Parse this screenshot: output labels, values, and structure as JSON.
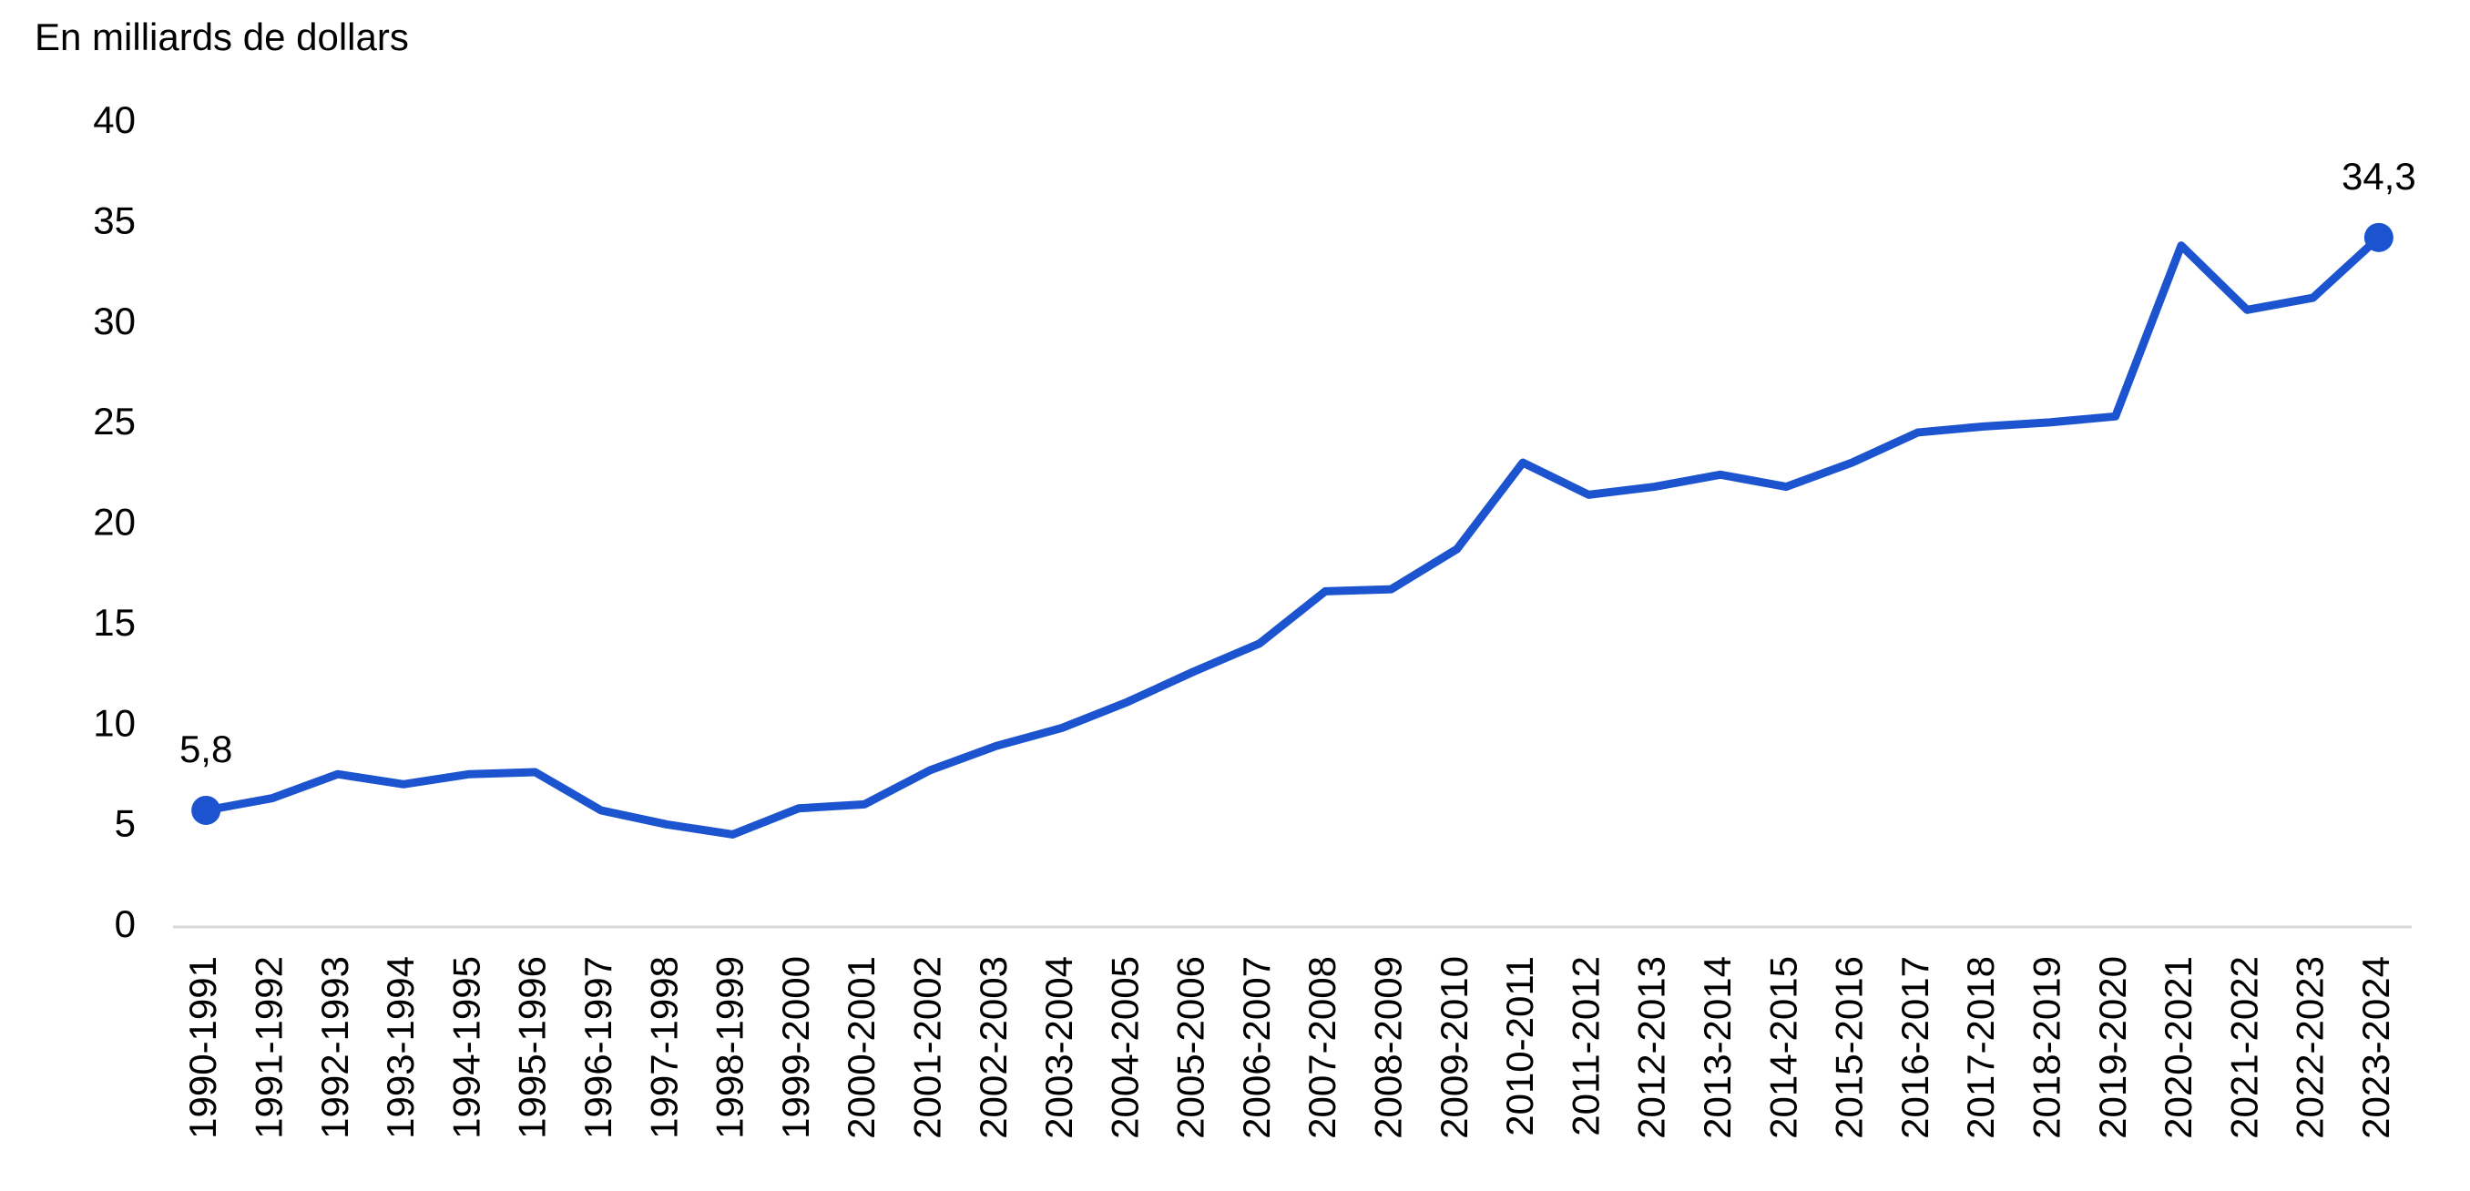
{
  "chart_data": {
    "type": "line",
    "y_label": "En milliards de dollars",
    "categories": [
      "1990-1991",
      "1991-1992",
      "1992-1993",
      "1993-1994",
      "1994-1995",
      "1995-1996",
      "1996-1997",
      "1997-1998",
      "1998-1999",
      "1999-2000",
      "2000-2001",
      "2001-2002",
      "2002-2003",
      "2003-2004",
      "2004-2005",
      "2005-2006",
      "2006-2007",
      "2007-2008",
      "2008-2009",
      "2009-2010",
      "2010-2011",
      "2011-2012",
      "2012-2013",
      "2013-2014",
      "2014-2015",
      "2015-2016",
      "2016-2017",
      "2017-2018",
      "2018-2019",
      "2019-2020",
      "2020-2021",
      "2021-2022",
      "2022-2023",
      "2023-2024"
    ],
    "values": [
      5.8,
      6.4,
      7.6,
      7.1,
      7.6,
      7.7,
      5.8,
      5.1,
      4.6,
      5.9,
      6.1,
      7.8,
      9.0,
      9.9,
      11.2,
      12.7,
      14.1,
      16.7,
      16.8,
      18.8,
      23.1,
      21.5,
      21.9,
      22.5,
      21.9,
      23.1,
      24.6,
      24.9,
      25.1,
      25.4,
      33.9,
      30.7,
      31.3,
      34.3
    ],
    "value_labels": [
      "5,8",
      null,
      null,
      null,
      null,
      null,
      null,
      null,
      null,
      null,
      null,
      null,
      null,
      null,
      null,
      null,
      null,
      null,
      null,
      null,
      null,
      null,
      null,
      null,
      null,
      null,
      null,
      null,
      null,
      null,
      null,
      null,
      null,
      "34,3"
    ],
    "color": "#1c54d0",
    "ylim": [
      0,
      40
    ],
    "yticks": [
      0,
      5,
      10,
      15,
      20,
      25,
      30,
      35,
      40
    ],
    "grid": false
  }
}
